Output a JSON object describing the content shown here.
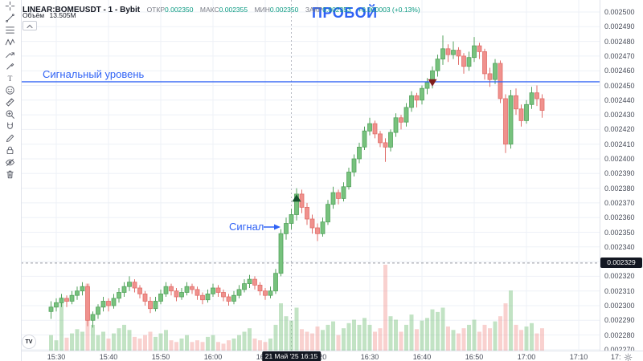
{
  "app": {
    "watermark_logo": "TV"
  },
  "legend": {
    "symbol": "LINEAR:BOMEUSDT - 1 - Bybit",
    "ohlc": [
      {
        "label": "ОТКР",
        "value": "0.002350"
      },
      {
        "label": "МАКС",
        "value": "0.002355"
      },
      {
        "label": "МИН",
        "value": "0.002350"
      },
      {
        "label": "ЗАКР",
        "value": "0.002353"
      }
    ],
    "change": "+0.000003 (+0.13%)",
    "volume_label": "Объём",
    "volume_value": "13.505M"
  },
  "annotations": {
    "title": "ПРОБОЙ",
    "signal_level_label": "Сигнальный уровень",
    "signal_label": "Сигнал",
    "accent_color": "#2f62f5",
    "last_price_badge": "0.002329",
    "crosshair_time_badge": "21 Май '25  16:15"
  },
  "toolbar": {
    "items": [
      "crosshair-icon",
      "trendline-icon",
      "fib-retracement-icon",
      "pattern-icon",
      "forecast-icon",
      "brush-icon",
      "text-icon",
      "emoji-icon",
      "measure-icon",
      "zoom-in-icon",
      "magnet-icon",
      "draw-icon",
      "lock-icon",
      "hide-icon",
      "trash-icon"
    ]
  },
  "price_axis": {
    "labels": [
      "0.002500",
      "0.002490",
      "0.002480",
      "0.002470",
      "0.002460",
      "0.002450",
      "0.002440",
      "0.002430",
      "0.002420",
      "0.002410",
      "0.002400",
      "0.002390",
      "0.002380",
      "0.002370",
      "0.002360",
      "0.002350",
      "0.002340",
      "0.002330",
      "0.002320",
      "0.002310",
      "0.002300",
      "0.002290",
      "0.002280",
      "0.002270"
    ]
  },
  "time_axis": {
    "labels": [
      "15:30",
      "15:40",
      "15:50",
      "16:00",
      "16:10",
      "16:20",
      "16:30",
      "16:40",
      "16:50",
      "17:00",
      "17:10"
    ],
    "partial_label": "17:"
  },
  "chart_data": {
    "type": "candlestick",
    "symbol": "LINEAR:BOMEUSDT",
    "interval": "1",
    "exchange": "Bybit",
    "title": "ПРОБОЙ",
    "price_unit": 1e-06,
    "y_axis": {
      "min": 0.00227,
      "max": 0.0025,
      "tick": 1e-05,
      "grid": true
    },
    "x_axis": {
      "start": "15:30",
      "end": "17:10",
      "tick_minutes": 10,
      "grid": true
    },
    "colors": {
      "candle_up_fill": "#77c27d",
      "candle_up_border": "#53a25c",
      "candle_down_fill": "#f0918d",
      "candle_down_border": "#e06e6a",
      "volume_up": "rgba(119,194,125,0.45)",
      "volume_down": "rgba(240,145,141,0.42)",
      "grid": "#eef1f7",
      "accent": "#2f62f5",
      "marker_up": "#14532d",
      "marker_down": "#7f1d1d"
    },
    "candles_format": [
      "open",
      "high",
      "low",
      "close",
      "volume_rel"
    ],
    "candles": [
      [
        2296,
        2303,
        2291,
        2299,
        0.18
      ],
      [
        2299,
        2305,
        2296,
        2302,
        0.12
      ],
      [
        2302,
        2308,
        2299,
        2305,
        0.62
      ],
      [
        2305,
        2307,
        2299,
        2303,
        0.15
      ],
      [
        2303,
        2310,
        2301,
        2307,
        0.2
      ],
      [
        2307,
        2313,
        2304,
        2310,
        0.25
      ],
      [
        2310,
        2316,
        2307,
        2313,
        0.22
      ],
      [
        2313,
        2315,
        2286,
        2290,
        0.78
      ],
      [
        2290,
        2296,
        2285,
        2294,
        0.3
      ],
      [
        2294,
        2301,
        2291,
        2299,
        0.18
      ],
      [
        2299,
        2306,
        2296,
        2303,
        0.22
      ],
      [
        2303,
        2305,
        2296,
        2300,
        0.14
      ],
      [
        2300,
        2308,
        2298,
        2305,
        0.2
      ],
      [
        2305,
        2312,
        2302,
        2309,
        0.26
      ],
      [
        2309,
        2316,
        2306,
        2313,
        0.3
      ],
      [
        2313,
        2320,
        2310,
        2316,
        0.24
      ],
      [
        2316,
        2318,
        2309,
        2312,
        0.16
      ],
      [
        2312,
        2314,
        2305,
        2308,
        0.14
      ],
      [
        2308,
        2310,
        2300,
        2303,
        0.18
      ],
      [
        2303,
        2306,
        2295,
        2298,
        0.22
      ],
      [
        2298,
        2306,
        2296,
        2303,
        0.16
      ],
      [
        2303,
        2311,
        2301,
        2308,
        0.2
      ],
      [
        2308,
        2316,
        2306,
        2313,
        0.24
      ],
      [
        2313,
        2315,
        2307,
        2310,
        0.12
      ],
      [
        2310,
        2312,
        2303,
        2306,
        0.1
      ],
      [
        2306,
        2312,
        2304,
        2309,
        0.14
      ],
      [
        2309,
        2316,
        2307,
        2313,
        0.18
      ],
      [
        2313,
        2315,
        2308,
        2311,
        0.1
      ],
      [
        2311,
        2313,
        2304,
        2307,
        0.12
      ],
      [
        2307,
        2309,
        2301,
        2304,
        0.1
      ],
      [
        2304,
        2311,
        2302,
        2308,
        0.16
      ],
      [
        2308,
        2315,
        2306,
        2312,
        0.18
      ],
      [
        2312,
        2314,
        2306,
        2309,
        0.1
      ],
      [
        2309,
        2311,
        2303,
        2306,
        0.08
      ],
      [
        2306,
        2308,
        2300,
        2303,
        0.12
      ],
      [
        2303,
        2310,
        2301,
        2307,
        0.14
      ],
      [
        2307,
        2314,
        2305,
        2311,
        0.18
      ],
      [
        2311,
        2318,
        2309,
        2315,
        0.22
      ],
      [
        2315,
        2321,
        2312,
        2318,
        0.26
      ],
      [
        2318,
        2320,
        2311,
        2314,
        0.14
      ],
      [
        2314,
        2316,
        2307,
        2310,
        0.12
      ],
      [
        2310,
        2312,
        2304,
        2307,
        0.1
      ],
      [
        2307,
        2313,
        2305,
        2310,
        0.14
      ],
      [
        2310,
        2325,
        2308,
        2322,
        0.3
      ],
      [
        2322,
        2352,
        2320,
        2349,
        0.55
      ],
      [
        2349,
        2360,
        2345,
        2356,
        0.4
      ],
      [
        2356,
        2366,
        2352,
        2362,
        0.35
      ],
      [
        2362,
        2380,
        2358,
        2376,
        0.5
      ],
      [
        2376,
        2379,
        2363,
        2367,
        0.25
      ],
      [
        2367,
        2370,
        2355,
        2359,
        0.22
      ],
      [
        2359,
        2362,
        2349,
        2353,
        0.2
      ],
      [
        2353,
        2356,
        2344,
        2349,
        0.28
      ],
      [
        2349,
        2360,
        2347,
        2357,
        0.24
      ],
      [
        2357,
        2372,
        2355,
        2369,
        0.3
      ],
      [
        2369,
        2381,
        2366,
        2377,
        0.34
      ],
      [
        2377,
        2379,
        2369,
        2373,
        0.18
      ],
      [
        2373,
        2384,
        2371,
        2381,
        0.26
      ],
      [
        2381,
        2394,
        2379,
        2391,
        0.32
      ],
      [
        2391,
        2403,
        2388,
        2400,
        0.36
      ],
      [
        2400,
        2411,
        2397,
        2408,
        0.3
      ],
      [
        2408,
        2422,
        2406,
        2419,
        0.38
      ],
      [
        2419,
        2428,
        2416,
        2424,
        0.3
      ],
      [
        2424,
        2426,
        2414,
        2417,
        0.22
      ],
      [
        2417,
        2419,
        2408,
        2411,
        0.26
      ],
      [
        2411,
        2414,
        2398,
        2408,
        1.0
      ],
      [
        2408,
        2420,
        2405,
        2418,
        0.4
      ],
      [
        2418,
        2431,
        2415,
        2428,
        0.36
      ],
      [
        2428,
        2430,
        2420,
        2425,
        0.22
      ],
      [
        2425,
        2438,
        2422,
        2435,
        0.3
      ],
      [
        2435,
        2446,
        2432,
        2443,
        0.42
      ],
      [
        2443,
        2445,
        2435,
        2440,
        0.25
      ],
      [
        2440,
        2450,
        2437,
        2448,
        0.35
      ],
      [
        2448,
        2455,
        2444,
        2452,
        0.38
      ],
      [
        2452,
        2463,
        2448,
        2460,
        0.48
      ],
      [
        2460,
        2471,
        2456,
        2468,
        0.45
      ],
      [
        2468,
        2484,
        2464,
        2475,
        0.5
      ],
      [
        2475,
        2478,
        2466,
        2471,
        0.28
      ],
      [
        2471,
        2480,
        2468,
        2474,
        0.24
      ],
      [
        2474,
        2476,
        2464,
        2470,
        0.2
      ],
      [
        2470,
        2472,
        2458,
        2463,
        0.26
      ],
      [
        2463,
        2473,
        2460,
        2469,
        0.3
      ],
      [
        2469,
        2483,
        2466,
        2477,
        0.36
      ],
      [
        2477,
        2479,
        2468,
        2473,
        0.22
      ],
      [
        2473,
        2475,
        2454,
        2458,
        0.3
      ],
      [
        2458,
        2462,
        2449,
        2454,
        0.26
      ],
      [
        2454,
        2468,
        2451,
        2465,
        0.34
      ],
      [
        2465,
        2467,
        2438,
        2441,
        0.4
      ],
      [
        2441,
        2444,
        2404,
        2410,
        0.55
      ],
      [
        2410,
        2447,
        2407,
        2443,
        0.7
      ],
      [
        2443,
        2448,
        2430,
        2434,
        0.3
      ],
      [
        2434,
        2437,
        2422,
        2426,
        0.24
      ],
      [
        2426,
        2440,
        2424,
        2437,
        0.28
      ],
      [
        2437,
        2449,
        2434,
        2445,
        0.32
      ],
      [
        2445,
        2450,
        2436,
        2441,
        0.2
      ],
      [
        2441,
        2444,
        2428,
        2433,
        0.26
      ]
    ],
    "markers": [
      {
        "type": "triangle-up",
        "index": 47,
        "price": 2373,
        "color": "#14532d"
      },
      {
        "type": "triangle-down",
        "index": 73,
        "price": 2452,
        "color": "#7f1d1d"
      }
    ],
    "lines": [
      {
        "name": "signal-level",
        "price": 2452.5,
        "style": "solid",
        "color": "#2f62f5"
      },
      {
        "name": "last-price",
        "price": 2329,
        "style": "dashed",
        "color": "#9598a1"
      }
    ],
    "crosshair": {
      "index": 46,
      "time": "16:15",
      "date": "21 Май '25"
    }
  }
}
